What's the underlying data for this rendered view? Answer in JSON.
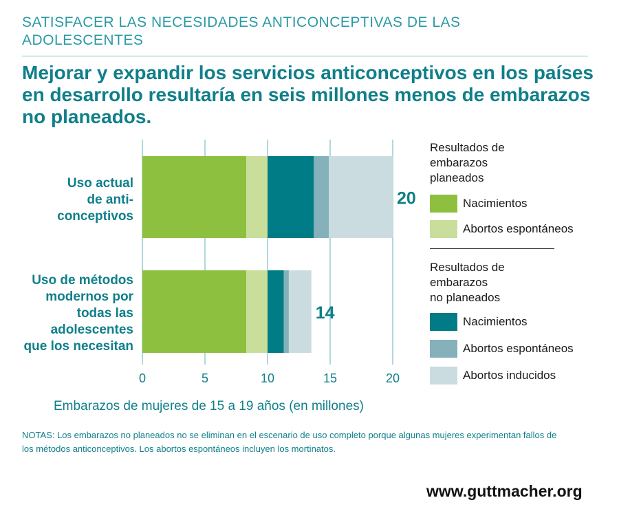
{
  "kicker": "SATISFACER LAS NECESIDADES ANTICONCEPTIVAS DE LAS ADOLESCENTES",
  "headline": "Mejorar y expandir los servicios anticonceptivos en los países en desarrollo resultaría en seis millones menos de embarazos no planeados.",
  "legend": {
    "planned_title": "Resultados de\nembarazos\nplaneados",
    "unplanned_title": "Resultados de\nembarazos\nno planeados"
  },
  "notes": "NOTAS: Los embarazos no planeados no se eliminan en el escenario de uso completo porque algunas mujeres experimentan fallos de los métodos anticonceptivos. Los abortos espontáneos incluyen los mortinatos.",
  "brand": "www.guttmacher.org",
  "chart_data": {
    "type": "bar",
    "orientation": "horizontal",
    "stacked": true,
    "categories": [
      "Uso actual\nde anti-\nconceptivos",
      "Uso de métodos\nmodernos por\ntodas las\nadolescentes\nque los necesitan"
    ],
    "totals": [
      "20",
      "14"
    ],
    "series": [
      {
        "name": "Nacimientos",
        "group": "planeados",
        "color": "#8dc03f",
        "values": [
          8.3,
          8.3
        ]
      },
      {
        "name": "Abortos espontáneos",
        "group": "planeados",
        "color": "#c9de9a",
        "values": [
          1.7,
          1.7
        ]
      },
      {
        "name": "Nacimientos",
        "group": "no planeados",
        "color": "#007c87",
        "values": [
          3.7,
          1.3
        ]
      },
      {
        "name": "Abortos espontáneos",
        "group": "no planeados",
        "color": "#84b1ba",
        "values": [
          1.2,
          0.4
        ]
      },
      {
        "name": "Abortos inducidos",
        "group": "no planeados",
        "color": "#cbdce0",
        "values": [
          5.1,
          1.8
        ]
      }
    ],
    "xlim": [
      0,
      20
    ],
    "xticks": [
      "0",
      "5",
      "10",
      "15",
      "20"
    ],
    "xlabel": "Embarazos de mujeres de 15 a 19 años (en millones)",
    "grid": true,
    "legend_position": "right"
  }
}
